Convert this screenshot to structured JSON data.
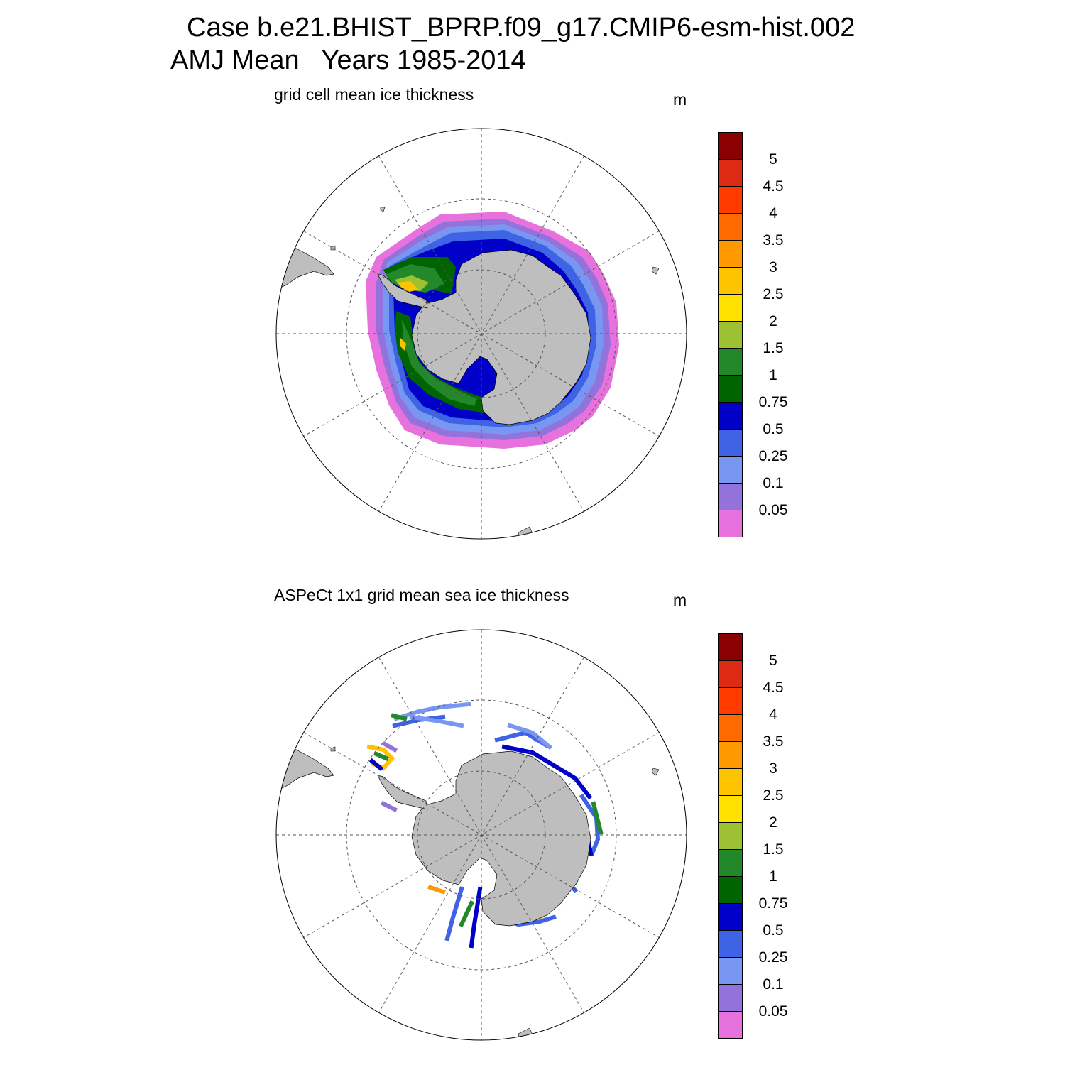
{
  "title_line1": "Case b.e21.BHIST_BPRP.f09_g17.CMIP6-esm-hist.002",
  "title_line2": "AMJ Mean   Years 1985-2014",
  "panels": [
    {
      "title": "grid cell mean ice thickness",
      "units": "m"
    },
    {
      "title": "ASPeCt 1x1 grid mean sea ice thickness",
      "units": "m"
    }
  ],
  "colorbar": {
    "labels": [
      "5",
      "4.5",
      "4",
      "3.5",
      "3",
      "2.5",
      "2",
      "1.5",
      "1",
      "0.75",
      "0.5",
      "0.25",
      "0.1",
      "0.05"
    ],
    "colors": [
      "#8b0000",
      "#dc2b12",
      "#ff3b00",
      "#ff6a00",
      "#ff9900",
      "#ffc400",
      "#ffe200",
      "#9dc132",
      "#22882a",
      "#006400",
      "#0000c8",
      "#3e64e5",
      "#7897f2",
      "#9372dc",
      "#e771dd"
    ]
  },
  "map_colors": {
    "land": "#bebebe",
    "grid": "#555555",
    "boundary": "#000000"
  }
}
